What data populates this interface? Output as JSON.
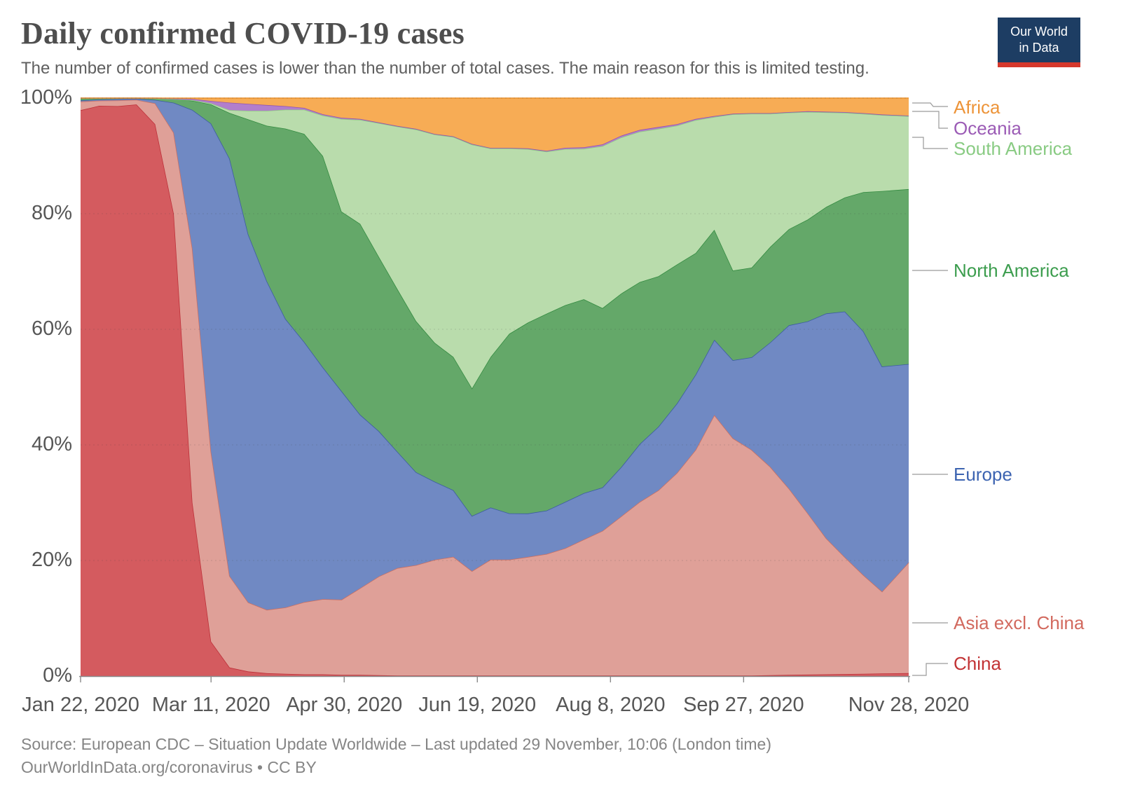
{
  "header": {
    "title": "Daily confirmed COVID-19 cases",
    "subtitle": "The number of confirmed cases is lower than the number of total cases. The main reason for this is limited testing."
  },
  "logo": {
    "line1": "Our World",
    "line2": "in Data",
    "bg_color": "#1d3d63",
    "bar_color": "#d6382c"
  },
  "source": {
    "line1": "Source: European CDC – Situation Update Worldwide – Last updated 29 November, 10:06 (London time)",
    "line2": "OurWorldInData.org/coronavirus • CC BY"
  },
  "chart_data": {
    "type": "area",
    "stacking": "percent",
    "title": "Daily confirmed COVID-19 cases",
    "grid": true,
    "legend_position": "right",
    "x_axis": {
      "tick_labels": [
        "Jan 22, 2020",
        "Mar 11, 2020",
        "Apr 30, 2020",
        "Jun 19, 2020",
        "Aug 8, 2020",
        "Sep 27, 2020",
        "Nov 28, 2020"
      ],
      "tick_days": [
        0,
        49,
        99,
        149,
        199,
        249,
        311
      ]
    },
    "y_axis": {
      "tick_labels": [
        "0%",
        "20%",
        "40%",
        "60%",
        "80%",
        "100%"
      ],
      "tick_values": [
        0,
        20,
        40,
        60,
        80,
        100
      ],
      "range": [
        0,
        100
      ]
    },
    "x_days": [
      0,
      7,
      14,
      21,
      28,
      35,
      42,
      49,
      56,
      63,
      70,
      77,
      84,
      91,
      98,
      105,
      112,
      119,
      126,
      133,
      140,
      147,
      154,
      161,
      168,
      175,
      182,
      189,
      196,
      203,
      210,
      217,
      224,
      231,
      238,
      245,
      252,
      259,
      266,
      273,
      280,
      287,
      294,
      301,
      311
    ],
    "x_dates": [
      "Jan 22",
      "Jan 29",
      "Feb 5",
      "Feb 12",
      "Feb 19",
      "Feb 26",
      "Mar 4",
      "Mar 11",
      "Mar 18",
      "Mar 25",
      "Apr 1",
      "Apr 8",
      "Apr 15",
      "Apr 22",
      "Apr 29",
      "May 6",
      "May 13",
      "May 20",
      "May 27",
      "Jun 3",
      "Jun 10",
      "Jun 17",
      "Jun 24",
      "Jul 1",
      "Jul 8",
      "Jul 15",
      "Jul 22",
      "Jul 29",
      "Aug 5",
      "Aug 12",
      "Aug 19",
      "Aug 26",
      "Sep 2",
      "Sep 9",
      "Sep 16",
      "Sep 23",
      "Sep 30",
      "Oct 7",
      "Oct 14",
      "Oct 21",
      "Oct 28",
      "Nov 4",
      "Nov 11",
      "Nov 18",
      "Nov 28"
    ],
    "unit": "% of daily confirmed cases",
    "series": [
      {
        "id": "china",
        "name": "China",
        "fill": "#D45B5F",
        "line": "#BD3039",
        "label_color": "#C23335",
        "values": [
          98.2,
          98.8,
          98.6,
          98.9,
          95.5,
          80,
          30,
          6,
          1.5,
          0.8,
          0.5,
          0.4,
          0.3,
          0.3,
          0.2,
          0.2,
          0.15,
          0.1,
          0.1,
          0.1,
          0.1,
          0.1,
          0.1,
          0.1,
          0.1,
          0.1,
          0.1,
          0.1,
          0.1,
          0.1,
          0.1,
          0.1,
          0.1,
          0.1,
          0.1,
          0.1,
          0.1,
          0.15,
          0.2,
          0.25,
          0.3,
          0.35,
          0.4,
          0.45,
          0.5
        ]
      },
      {
        "id": "asia_excl_china",
        "name": "Asia excl. China",
        "fill": "#DFA098",
        "line": "#C96F63",
        "label_color": "#D2695E",
        "values": [
          1.5,
          0.9,
          1.0,
          0.8,
          3.6,
          14,
          44,
          33,
          16,
          12,
          11,
          11.5,
          12.5,
          13,
          13,
          15,
          17,
          18.5,
          19,
          20,
          20.5,
          18,
          20,
          20,
          20.5,
          21,
          22,
          23.5,
          25,
          27.5,
          30,
          32,
          35,
          39,
          45,
          41,
          39,
          36,
          32,
          27,
          23,
          20,
          17,
          14,
          19
        ]
      },
      {
        "id": "europe",
        "name": "Europe",
        "fill": "#7089C3",
        "line": "#3C5DA0",
        "label_color": "#3D64B1",
        "values": [
          0.2,
          0.2,
          0.25,
          0.2,
          0.6,
          5.2,
          24,
          57,
          73,
          64,
          57,
          50,
          45,
          40,
          36,
          30,
          25,
          20,
          16,
          13.5,
          11.5,
          9.5,
          9,
          8,
          7.5,
          7.5,
          8,
          8,
          7.5,
          8.5,
          10,
          11,
          12,
          13,
          13,
          13.5,
          16,
          21.5,
          28,
          32,
          38,
          42,
          42,
          38.5,
          34
        ]
      },
      {
        "id": "north_america",
        "name": "North America",
        "fill": "#64A869",
        "line": "#348B41",
        "label_color": "#3C9D4E",
        "values": [
          0.35,
          0.2,
          0.12,
          0.08,
          0.25,
          0.6,
          1.6,
          3.3,
          8,
          20,
          27,
          33,
          36,
          36.5,
          31,
          33,
          30,
          28,
          26,
          24,
          23,
          22,
          26,
          31,
          33,
          34,
          34,
          33.5,
          31,
          30,
          28,
          26,
          24,
          21,
          19,
          15.5,
          15.5,
          16.5,
          16.5,
          17,
          18,
          19.5,
          24,
          30,
          30
        ]
      },
      {
        "id": "south_america",
        "name": "South America",
        "fill": "#B9DCAC",
        "line": "#8FCB82",
        "label_color": "#89CB83",
        "values": [
          0.02,
          0.01,
          0.01,
          0.01,
          0.01,
          0.01,
          0.1,
          0.2,
          0.5,
          1.5,
          2.6,
          3.3,
          4.2,
          7,
          16,
          18,
          23,
          28,
          33,
          36,
          38,
          42,
          36,
          32,
          30,
          28,
          27,
          26,
          28,
          27,
          26,
          25.5,
          24,
          23,
          19.5,
          27,
          26.6,
          23,
          20,
          18,
          16,
          14.5,
          13.5,
          13,
          12.5
        ]
      },
      {
        "id": "oceania",
        "name": "Oceania",
        "fill": "#B27ECC",
        "line": "#9456AC",
        "label_color": "#9B5BB5",
        "values": [
          0.03,
          0.03,
          0.02,
          0.01,
          0.04,
          0.1,
          0.2,
          0.4,
          1.3,
          1.2,
          1.0,
          0.6,
          0.3,
          0.2,
          0.2,
          0.15,
          0.1,
          0.1,
          0.1,
          0.1,
          0.1,
          0.1,
          0.1,
          0.1,
          0.1,
          0.15,
          0.2,
          0.25,
          0.3,
          0.3,
          0.3,
          0.3,
          0.25,
          0.2,
          0.15,
          0.1,
          0.1,
          0.1,
          0.1,
          0.1,
          0.1,
          0.1,
          0.1,
          0.1,
          0.1
        ]
      },
      {
        "id": "africa",
        "name": "Africa",
        "fill": "#F7AC55",
        "line": "#E8912D",
        "label_color": "#ED9439",
        "values": [
          0.0,
          0.0,
          0.0,
          0.0,
          0.01,
          0.09,
          0.15,
          0.5,
          0.8,
          1.0,
          1.2,
          1.4,
          1.7,
          2.8,
          3.4,
          3.6,
          4.2,
          4.8,
          5.3,
          6.2,
          6.6,
          7.9,
          8.6,
          8.6,
          8.7,
          9.1,
          8.6,
          8.5,
          8.0,
          6.5,
          5.5,
          5.0,
          4.5,
          3.6,
          3.1,
          2.7,
          2.6,
          2.6,
          2.4,
          2.2,
          2.3,
          2.4,
          2.6,
          2.8,
          3.0
        ]
      }
    ],
    "legend": [
      {
        "id": "africa",
        "label": "Africa"
      },
      {
        "id": "oceania",
        "label": "Oceania"
      },
      {
        "id": "south_america",
        "label": "South America"
      },
      {
        "id": "north_america",
        "label": "North America"
      },
      {
        "id": "europe",
        "label": "Europe"
      },
      {
        "id": "asia_excl_china",
        "label": "Asia excl. China"
      },
      {
        "id": "china",
        "label": "China"
      }
    ]
  }
}
